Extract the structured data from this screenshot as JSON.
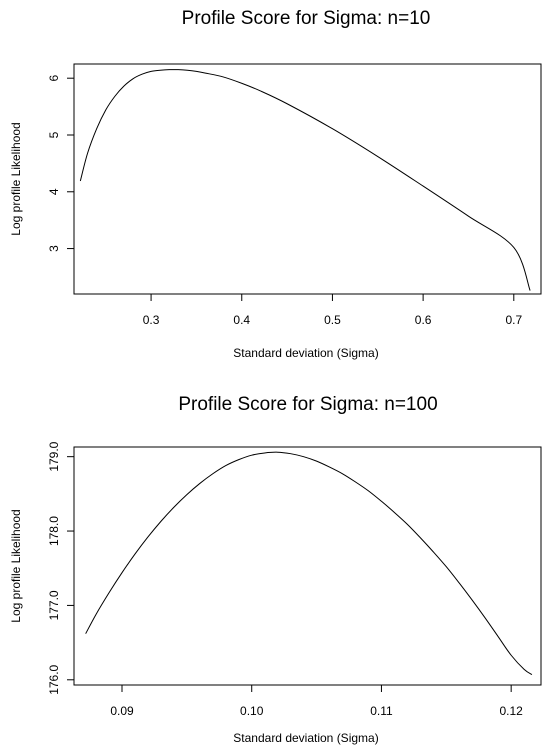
{
  "chart_data": [
    {
      "type": "line",
      "title": "Profile Score for Sigma: n=10",
      "xlabel": "Standard deviation (Sigma)",
      "ylabel": "Log profile Likelihood",
      "xlim": [
        0.215,
        0.73
      ],
      "ylim": [
        2.2,
        6.25
      ],
      "xticks": [
        0.3,
        0.4,
        0.5,
        0.6,
        0.7
      ],
      "xtick_labels": [
        "0.3",
        "0.4",
        "0.5",
        "0.6",
        "0.7"
      ],
      "yticks": [
        3,
        4,
        5,
        6
      ],
      "ytick_labels": [
        "3",
        "4",
        "5",
        "6"
      ],
      "grid": false,
      "series": [
        {
          "x": [
            0.222,
            0.23,
            0.24,
            0.25,
            0.26,
            0.27,
            0.28,
            0.29,
            0.3,
            0.31,
            0.32,
            0.33,
            0.34,
            0.35,
            0.36,
            0.38,
            0.4,
            0.42,
            0.45,
            0.5,
            0.55,
            0.6,
            0.65,
            0.7,
            0.718
          ],
          "y": [
            4.19,
            4.68,
            5.11,
            5.44,
            5.68,
            5.86,
            5.99,
            6.07,
            6.12,
            6.14,
            6.15,
            6.15,
            6.14,
            6.12,
            6.09,
            6.02,
            5.91,
            5.78,
            5.55,
            5.11,
            4.62,
            4.1,
            3.57,
            3.02,
            2.26
          ]
        }
      ]
    },
    {
      "type": "line",
      "title": "Profile Score for Sigma: n=100",
      "xlabel": "Standard deviation (Sigma)",
      "ylabel": "Log profile Likelihood",
      "xlim": [
        0.0863,
        0.1223
      ],
      "ylim": [
        175.93,
        179.13
      ],
      "xticks": [
        0.09,
        0.1,
        0.11,
        0.12
      ],
      "xtick_labels": [
        "0.09",
        "0.10",
        "0.11",
        "0.12"
      ],
      "yticks": [
        176.0,
        177.0,
        178.0,
        179.0
      ],
      "ytick_labels": [
        "176.0",
        "177.0",
        "178.0",
        "179.0"
      ],
      "grid": false,
      "series": [
        {
          "x": [
            0.0872,
            0.088,
            0.089,
            0.09,
            0.091,
            0.092,
            0.093,
            0.094,
            0.095,
            0.096,
            0.097,
            0.098,
            0.099,
            0.1,
            0.101,
            0.102,
            0.103,
            0.104,
            0.105,
            0.106,
            0.107,
            0.108,
            0.109,
            0.11,
            0.111,
            0.112,
            0.113,
            0.114,
            0.115,
            0.116,
            0.117,
            0.118,
            0.119,
            0.12,
            0.121,
            0.1216
          ],
          "y": [
            176.62,
            176.88,
            177.17,
            177.44,
            177.69,
            177.92,
            178.13,
            178.32,
            178.49,
            178.64,
            178.77,
            178.88,
            178.96,
            179.02,
            179.05,
            179.06,
            179.04,
            179.0,
            178.94,
            178.86,
            178.77,
            178.66,
            178.54,
            178.4,
            178.25,
            178.09,
            177.91,
            177.72,
            177.52,
            177.3,
            177.07,
            176.83,
            176.58,
            176.33,
            176.14,
            176.07
          ]
        }
      ]
    }
  ]
}
